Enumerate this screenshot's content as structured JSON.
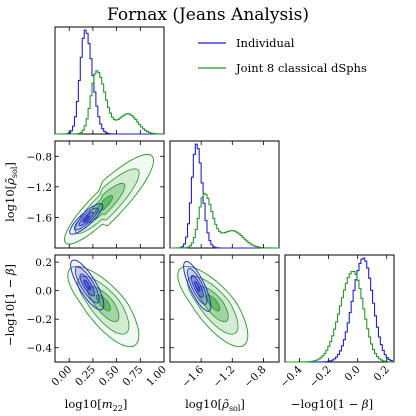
{
  "chart_data": {
    "type": "corner",
    "title": "Fornax (Jeans Analysis)",
    "parameters": [
      {
        "label": "log10[m22]",
        "range": [
          -0.15,
          1.0
        ],
        "ticks": [
          0.0,
          0.25,
          0.5,
          0.75,
          1.0
        ],
        "tick_labels": [
          "0.00",
          "0.25",
          "0.50",
          "0.75",
          "1.00"
        ]
      },
      {
        "label": "log10[ρ̃sol]",
        "range": [
          -2.0,
          -0.6
        ],
        "ticks": [
          -1.6,
          -1.2,
          -0.8
        ],
        "tick_labels": [
          "−1.6",
          "−1.2",
          "−0.8"
        ]
      },
      {
        "label": "−log10[1 − β]",
        "range": [
          -0.5,
          0.25
        ],
        "ticks": [
          -0.4,
          -0.2,
          0.0,
          0.2
        ],
        "tick_labels": [
          "−0.4",
          "−0.2",
          "0.0",
          "0.2"
        ]
      }
    ],
    "row_tick_labels": {
      "rho_sol": [
        "−1.6",
        "−1.2",
        "−0.8"
      ],
      "beta": [
        "−0.4",
        "−0.2",
        "0.0",
        "0.2"
      ]
    },
    "row_axis_labels": {
      "rho_sol": "log10[ρ̃sol]",
      "beta": "−log10[1 − β]"
    },
    "series": [
      {
        "name": "Individual",
        "color": "#1f1fd6",
        "marginals": [
          {
            "peak": 0.17,
            "sigma_left": 0.055,
            "sigma_right": 0.075,
            "tail": []
          },
          {
            "peak": -1.66,
            "sigma_left": 0.06,
            "sigma_right": 0.075,
            "tail": []
          },
          {
            "peak": 0.04,
            "sigma_left": 0.075,
            "sigma_right": 0.065,
            "tail": []
          }
        ],
        "pairs": {
          "m22_rho": {
            "center": [
              0.18,
              -1.62
            ],
            "sx": 0.07,
            "sy": 0.08,
            "rho": 0.85
          },
          "m22_beta": {
            "center": [
              0.19,
              0.04
            ],
            "sx": 0.07,
            "sy": 0.07,
            "rho": -0.8
          },
          "rho_beta": {
            "center": [
              -1.65,
              0.03
            ],
            "sx": 0.07,
            "sy": 0.07,
            "rho": -0.8
          }
        }
      },
      {
        "name": "Joint 8 classical dSphs",
        "color": "#229922",
        "marginals": [
          {
            "peak": 0.29,
            "sigma_left": 0.06,
            "sigma_right": 0.09,
            "tail": [
              0.62,
              0.1,
              0.32
            ]
          },
          {
            "peak": -1.56,
            "sigma_left": 0.07,
            "sigma_right": 0.1,
            "tail": [
              -1.2,
              0.14,
              0.32
            ]
          },
          {
            "peak": -0.03,
            "sigma_left": 0.09,
            "sigma_right": 0.07,
            "tail": []
          }
        ],
        "pairs": {
          "m22_rho": {
            "center": [
              0.35,
              -1.45
            ],
            "sx": 0.16,
            "sy": 0.2,
            "rho": 0.88
          },
          "m22_beta": {
            "center": [
              0.36,
              -0.08
            ],
            "sx": 0.15,
            "sy": 0.1,
            "rho": -0.75
          },
          "rho_beta": {
            "center": [
              -1.45,
              -0.08
            ],
            "sx": 0.18,
            "sy": 0.1,
            "rho": -0.75
          }
        }
      }
    ],
    "legend": {
      "placement": "top-right",
      "entries": [
        "Individual",
        "Joint 8 classical dSphs"
      ]
    }
  }
}
